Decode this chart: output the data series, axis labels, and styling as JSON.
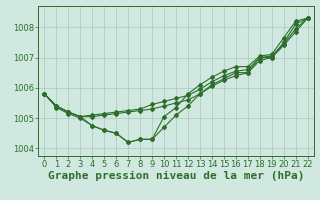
{
  "title": "Graphe pression niveau de la mer (hPa)",
  "background_color": "#d0e8e0",
  "line_color": "#2d6e2d",
  "grid_color": "#a8c8c0",
  "series": [
    [
      1005.8,
      1005.35,
      1005.15,
      1005.0,
      1004.75,
      1004.6,
      1004.5,
      1004.2,
      1004.3,
      1004.3,
      1005.05,
      1005.35,
      1005.8,
      1006.1,
      1006.35,
      1006.55,
      1006.7,
      1006.7,
      1007.05,
      1007.1,
      1007.65,
      1008.2,
      1008.3
    ],
    [
      1005.8,
      1005.4,
      1005.2,
      1005.05,
      1005.05,
      1005.1,
      1005.15,
      1005.2,
      1005.25,
      1005.3,
      1005.4,
      1005.5,
      1005.6,
      1005.8,
      1006.05,
      1006.25,
      1006.4,
      1006.5,
      1006.9,
      1007.0,
      1007.4,
      1007.85,
      1008.3
    ],
    [
      1005.8,
      1005.4,
      1005.2,
      1005.05,
      1005.1,
      1005.15,
      1005.2,
      1005.25,
      1005.3,
      1005.45,
      1005.55,
      1005.65,
      1005.75,
      1005.95,
      1006.2,
      1006.4,
      1006.55,
      1006.6,
      1007.0,
      1007.05,
      1007.45,
      1007.95,
      1008.3
    ],
    [
      1005.8,
      1005.4,
      1005.2,
      1005.05,
      1004.75,
      1004.6,
      1004.5,
      1004.2,
      1004.3,
      1004.3,
      1004.7,
      1005.1,
      1005.4,
      1005.8,
      1006.1,
      1006.3,
      1006.5,
      1006.5,
      1007.0,
      1007.0,
      1007.5,
      1008.1,
      1008.3
    ]
  ],
  "ylim": [
    1003.75,
    1008.7
  ],
  "xlim": [
    -0.5,
    22.5
  ],
  "yticks": [
    1004,
    1005,
    1006,
    1007,
    1008
  ],
  "xticks": [
    0,
    1,
    2,
    3,
    4,
    5,
    6,
    7,
    8,
    9,
    10,
    11,
    12,
    13,
    14,
    15,
    16,
    17,
    18,
    19,
    20,
    21,
    22
  ],
  "title_fontsize": 8,
  "tick_fontsize": 6,
  "marker": "D",
  "markersize": 2.0,
  "linewidth": 0.8
}
